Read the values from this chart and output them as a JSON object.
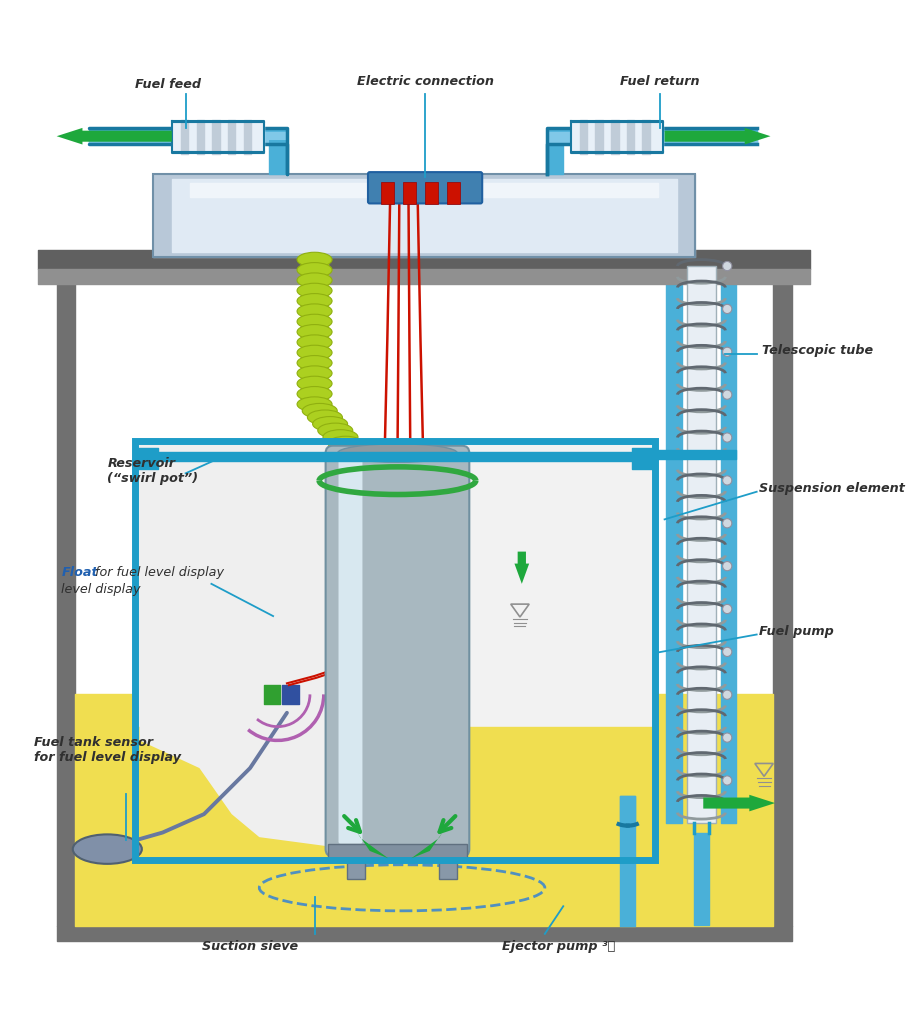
{
  "background_color": "#ffffff",
  "figsize": [
    9.18,
    10.24
  ],
  "dpi": 100,
  "labels": {
    "fuel_feed": "Fuel feed",
    "electric_connection": "Electric connection",
    "fuel_return": "Fuel return",
    "telescopic_tube": "Telescopic tube",
    "reservoir": "Reservoir\n(“swirl pot”)",
    "suspension_element": "Suspension element",
    "float_label": "for fuel\nlevel display",
    "float_bold": "Float",
    "fuel_pump": "Fuel pump",
    "fuel_tank_sensor": "Fuel tank sensor\nfor fuel level display",
    "suction_sieve": "Suction sieve",
    "ejector_pump": "Ejector pump ³⧠"
  },
  "colors": {
    "blue": "#1e9dc8",
    "blue_dark": "#1878a0",
    "green_arrow": "#1ea83c",
    "yellow_fuel": "#f0de50",
    "gray_tank": "#808080",
    "gray_light": "#d0d0d0",
    "gray_dark": "#606060",
    "white_bg": "#ffffff",
    "silver": "#b8c0c8",
    "silver_light": "#d8e0e8",
    "red_wire": "#cc1100",
    "green_hose": "#acd020",
    "green_hose_dark": "#90b010",
    "purple": "#b060b0",
    "dark_gray": "#404040",
    "mid_gray": "#909090",
    "green_fitting": "#30a840",
    "label_color": "#303030",
    "dashed_blue": "#5090c0",
    "lid_gray": "#b8c8d8",
    "lid_light": "#e0eaf4",
    "tank_wall": "#707070",
    "pipe_blue": "#4ab0d8",
    "connector_gray": "#c8d0d8",
    "float_blue": "#2060b0"
  }
}
